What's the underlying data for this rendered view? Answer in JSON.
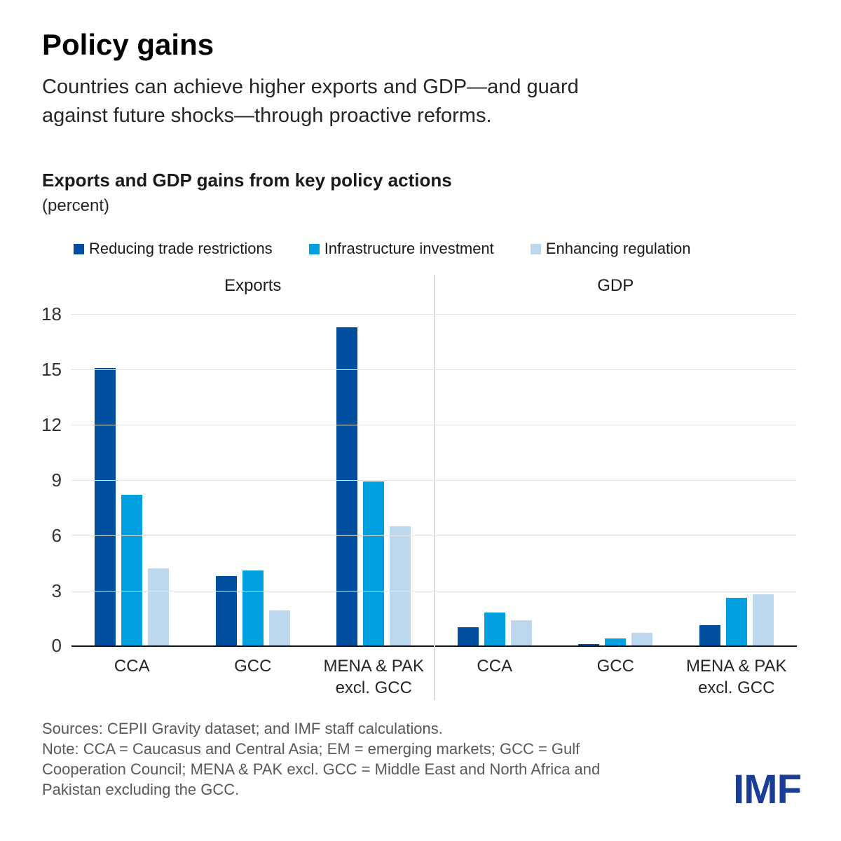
{
  "page": {
    "title": "Policy gains",
    "subtitle_lines": [
      "Countries can achieve higher exports and GDP—and guard",
      "against future shocks—through proactive reforms."
    ]
  },
  "chart": {
    "heading": "Exports and GDP gains from key policy actions",
    "unit_label": "(percent)"
  },
  "footer": {
    "sources": "Sources: CEPII Gravity dataset; and IMF staff calculations.",
    "note_lines": [
      "Note: CCA = Caucasus and Central Asia; EM = emerging markets; GCC = Gulf",
      "Cooperation Council; MENA & PAK excl. GCC = Middle East and North Africa and",
      "Pakistan excluding the GCC."
    ],
    "logo_text": "IMF"
  },
  "colors": {
    "series_dark_blue": "#004f9e",
    "series_medium_blue": "#009fe0",
    "series_light_blue": "#bdd7ee",
    "logo_blue": "#1a3e96",
    "gridline_gray": "#e4e4e4",
    "divider_gray": "#dcdcdc",
    "axis_black": "#111111"
  },
  "chart_data": {
    "type": "bar",
    "title": "Exports and GDP gains from key policy actions",
    "ylabel": "(percent)",
    "ylim": [
      0,
      18
    ],
    "yticks": [
      0,
      3,
      6,
      9,
      12,
      15,
      18
    ],
    "grid": true,
    "legend_position": "top",
    "legend": [
      "Reducing trade restrictions",
      "Infrastructure investment",
      "Enhancing regulation"
    ],
    "panels": [
      {
        "label": "Exports",
        "categories": [
          [
            "CCA"
          ],
          [
            "GCC"
          ],
          [
            "MENA & PAK",
            "excl. GCC"
          ]
        ],
        "series": [
          {
            "name": "Reducing trade restrictions",
            "color": "#004f9e",
            "values": [
              15.1,
              3.8,
              17.3
            ]
          },
          {
            "name": "Infrastructure investment",
            "color": "#009fe0",
            "values": [
              8.2,
              4.1,
              8.9
            ]
          },
          {
            "name": "Enhancing regulation",
            "color": "#bdd7ee",
            "values": [
              4.2,
              1.9,
              6.5
            ]
          }
        ]
      },
      {
        "label": "GDP",
        "categories": [
          [
            "CCA"
          ],
          [
            "GCC"
          ],
          [
            "MENA & PAK",
            "excl. GCC"
          ]
        ],
        "series": [
          {
            "name": "Reducing trade restrictions",
            "color": "#004f9e",
            "values": [
              1.0,
              0.1,
              1.1
            ]
          },
          {
            "name": "Infrastructure investment",
            "color": "#009fe0",
            "values": [
              1.8,
              0.4,
              2.6
            ]
          },
          {
            "name": "Enhancing regulation",
            "color": "#bdd7ee",
            "values": [
              1.4,
              0.7,
              2.8
            ]
          }
        ]
      }
    ]
  }
}
